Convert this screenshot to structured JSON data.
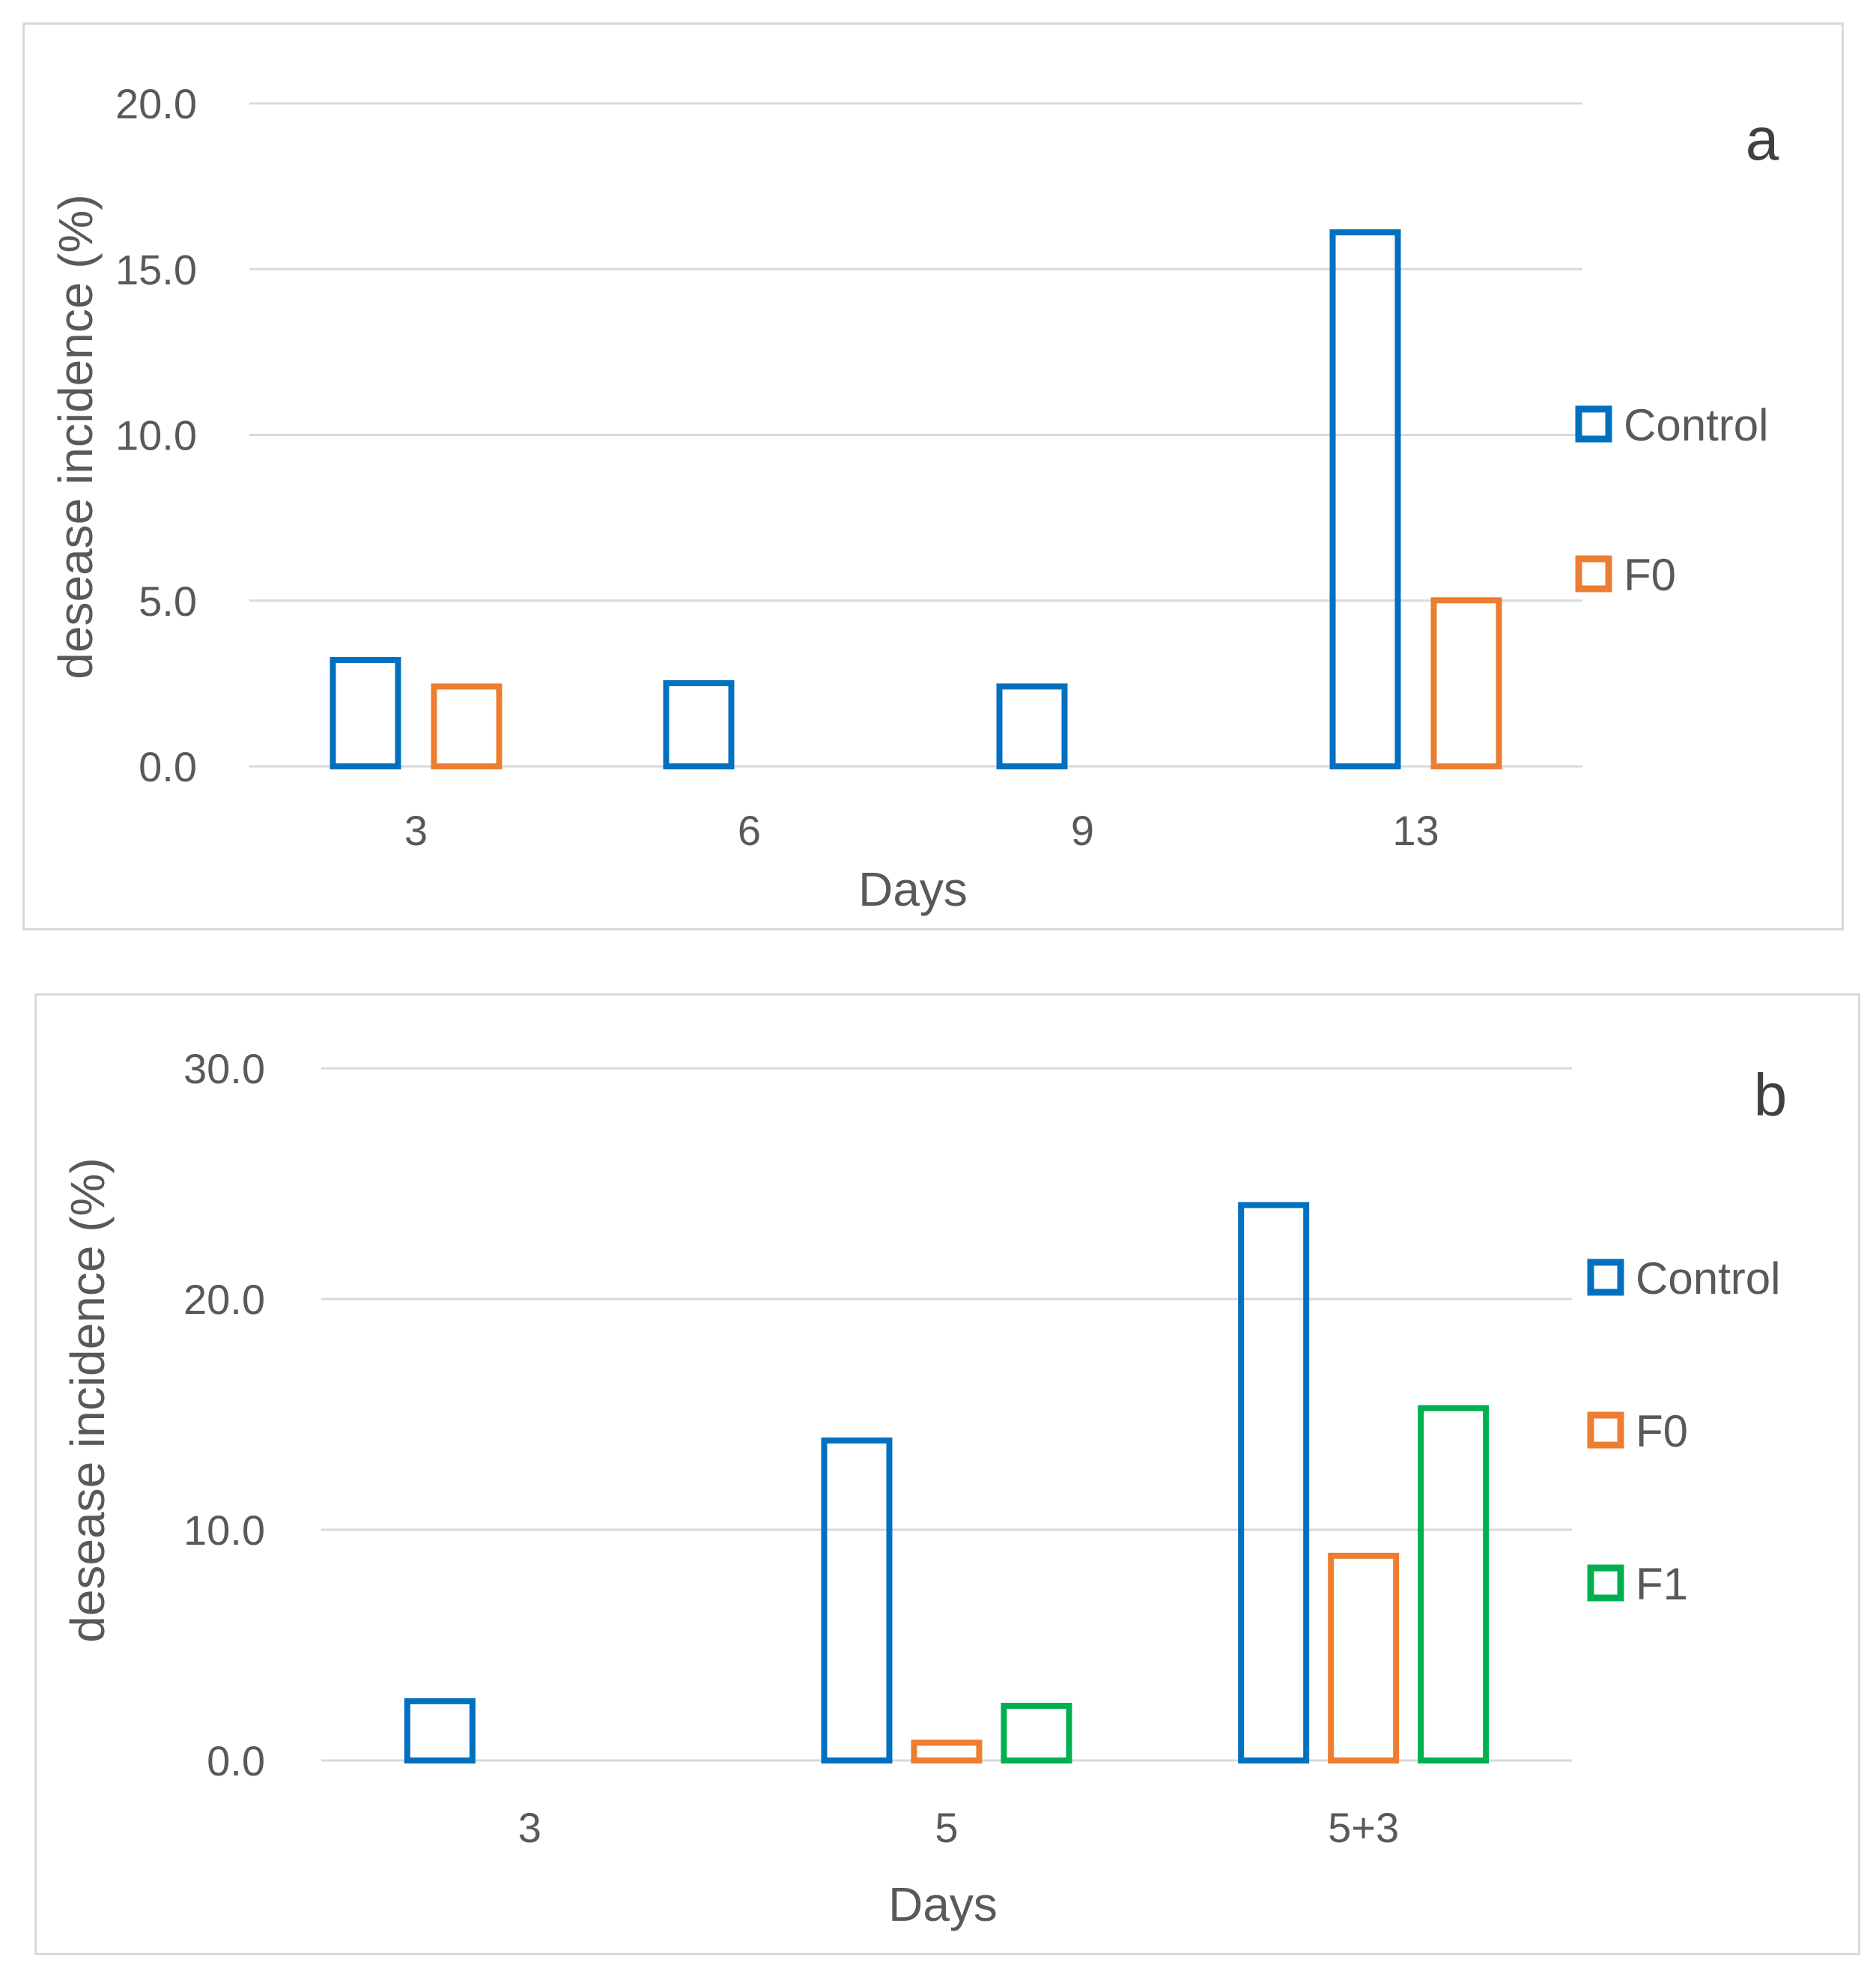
{
  "chart_data": [
    {
      "type": "bar",
      "panel_label": "a",
      "title": "",
      "xlabel": "Days",
      "ylabel": "desease incidence (%)",
      "ylim": [
        0,
        20
      ],
      "yticks": [
        "0.0",
        "5.0",
        "10.0",
        "15.0",
        "20.0"
      ],
      "categories": [
        "3",
        "6",
        "9",
        "13"
      ],
      "grid": true,
      "legend_position": "right",
      "series": [
        {
          "name": "Control",
          "color": "#0070C0",
          "values": [
            3.3,
            2.6,
            2.5,
            16.2
          ]
        },
        {
          "name": "F0",
          "color": "#ED7D31",
          "values": [
            2.5,
            0,
            0,
            5.1
          ]
        }
      ]
    },
    {
      "type": "bar",
      "panel_label": "b",
      "title": "",
      "xlabel": "Days",
      "ylabel": "desease incidence (%)",
      "ylim": [
        0,
        30
      ],
      "yticks": [
        "0.0",
        "10.0",
        "20.0",
        "30.0"
      ],
      "categories": [
        "3",
        "5",
        "5+3"
      ],
      "grid": true,
      "legend_position": "right",
      "series": [
        {
          "name": "Control",
          "color": "#0070C0",
          "values": [
            2.7,
            14.0,
            24.2
          ]
        },
        {
          "name": "F0",
          "color": "#ED7D31",
          "values": [
            0,
            0.9,
            9.0
          ]
        },
        {
          "name": "F1",
          "color": "#00B050",
          "values": [
            0,
            2.5,
            15.4
          ]
        }
      ]
    }
  ]
}
